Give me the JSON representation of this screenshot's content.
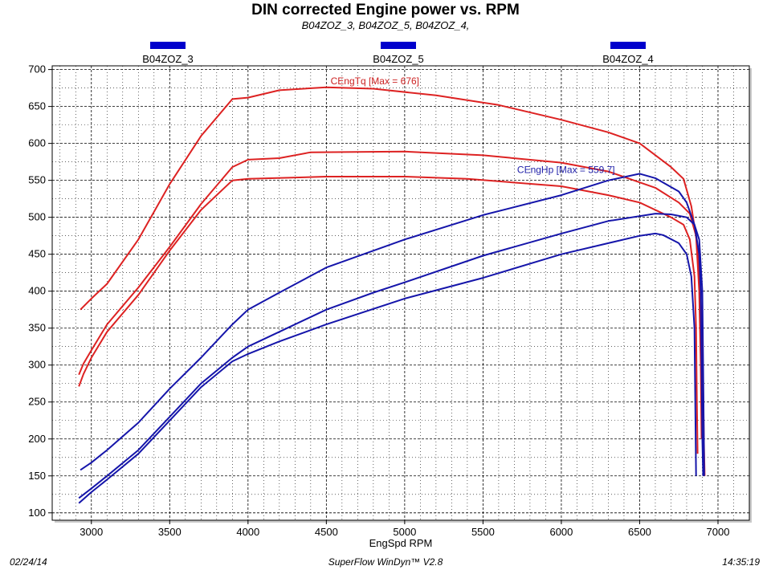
{
  "header": {
    "title": "DIN corrected Engine power vs. RPM",
    "subtitle": "B04ZOZ_3, B04ZOZ_5, B04ZOZ_4,"
  },
  "footer": {
    "date": "02/24/14",
    "software": "SuperFlow WinDyn™ V2.8",
    "time": "14:35:19"
  },
  "chart_data": {
    "type": "line",
    "title": "DIN corrected Engine power vs. RPM",
    "xlabel": "EngSpd  RPM",
    "ylabel": "",
    "xlim": [
      2750,
      7200
    ],
    "ylim": [
      90,
      705
    ],
    "x_ticks": [
      3000,
      3500,
      4000,
      4500,
      5000,
      5500,
      6000,
      6500,
      7000
    ],
    "y_ticks": [
      100,
      150,
      200,
      250,
      300,
      350,
      400,
      450,
      500,
      550,
      600,
      650,
      700
    ],
    "grid": true,
    "legend": [
      "B04ZOZ_3",
      "B04ZOZ_5",
      "B04ZOZ_4"
    ],
    "legend_placement": "top",
    "legend_color": "#0000cc",
    "annotations": [
      {
        "text": "CEngTq [Max = 676]",
        "x": 4810,
        "y": 680,
        "color": "#cc2222"
      },
      {
        "text": "CEngHp [Max = 559.7]",
        "x": 6030,
        "y": 560,
        "color": "#2222aa"
      }
    ],
    "series": [
      {
        "color": "#dd2222",
        "points": [
          [
            2930,
            375
          ],
          [
            3000,
            390
          ],
          [
            3100,
            410
          ],
          [
            3300,
            470
          ],
          [
            3500,
            545
          ],
          [
            3700,
            610
          ],
          [
            3900,
            660
          ],
          [
            4000,
            662
          ],
          [
            4200,
            672
          ],
          [
            4500,
            676
          ],
          [
            4800,
            674
          ],
          [
            5200,
            665
          ],
          [
            5600,
            652
          ],
          [
            6000,
            632
          ],
          [
            6300,
            615
          ],
          [
            6500,
            600
          ],
          [
            6700,
            568
          ],
          [
            6780,
            552
          ],
          [
            6830,
            515
          ],
          [
            6870,
            460
          ],
          [
            6900,
            350
          ],
          [
            6910,
            200
          ],
          [
            6915,
            150
          ]
        ]
      },
      {
        "color": "#dd2222",
        "points": [
          [
            2920,
            287
          ],
          [
            2950,
            302
          ],
          [
            3000,
            320
          ],
          [
            3100,
            355
          ],
          [
            3300,
            405
          ],
          [
            3500,
            460
          ],
          [
            3700,
            518
          ],
          [
            3900,
            568
          ],
          [
            4000,
            578
          ],
          [
            4200,
            580
          ],
          [
            4400,
            588
          ],
          [
            5000,
            589
          ],
          [
            5500,
            584
          ],
          [
            6000,
            574
          ],
          [
            6300,
            562
          ],
          [
            6600,
            540
          ],
          [
            6750,
            520
          ],
          [
            6820,
            505
          ],
          [
            6860,
            475
          ],
          [
            6880,
            400
          ],
          [
            6890,
            300
          ],
          [
            6895,
            200
          ]
        ]
      },
      {
        "color": "#dd2222",
        "points": [
          [
            2920,
            271
          ],
          [
            2950,
            288
          ],
          [
            3000,
            310
          ],
          [
            3100,
            345
          ],
          [
            3300,
            395
          ],
          [
            3500,
            455
          ],
          [
            3700,
            510
          ],
          [
            3900,
            550
          ],
          [
            4000,
            552
          ],
          [
            4500,
            555
          ],
          [
            5000,
            555
          ],
          [
            5400,
            552
          ],
          [
            6000,
            542
          ],
          [
            6300,
            530
          ],
          [
            6500,
            520
          ],
          [
            6700,
            500
          ],
          [
            6780,
            490
          ],
          [
            6820,
            470
          ],
          [
            6850,
            420
          ],
          [
            6860,
            350
          ],
          [
            6865,
            250
          ],
          [
            6870,
            180
          ]
        ]
      },
      {
        "color": "#1515aa",
        "points": [
          [
            2930,
            158
          ],
          [
            3000,
            168
          ],
          [
            3100,
            185
          ],
          [
            3300,
            222
          ],
          [
            3500,
            268
          ],
          [
            3700,
            310
          ],
          [
            3900,
            355
          ],
          [
            4000,
            375
          ],
          [
            4200,
            398
          ],
          [
            4500,
            432
          ],
          [
            5000,
            470
          ],
          [
            5500,
            503
          ],
          [
            6000,
            530
          ],
          [
            6300,
            550
          ],
          [
            6500,
            559
          ],
          [
            6600,
            553
          ],
          [
            6750,
            535
          ],
          [
            6800,
            520
          ],
          [
            6850,
            490
          ],
          [
            6880,
            450
          ],
          [
            6890,
            400
          ],
          [
            6895,
            300
          ],
          [
            6900,
            200
          ],
          [
            6905,
            150
          ]
        ]
      },
      {
        "color": "#1515aa",
        "points": [
          [
            2920,
            120
          ],
          [
            3000,
            133
          ],
          [
            3100,
            150
          ],
          [
            3300,
            185
          ],
          [
            3500,
            230
          ],
          [
            3700,
            275
          ],
          [
            3900,
            310
          ],
          [
            4000,
            325
          ],
          [
            4200,
            345
          ],
          [
            4500,
            375
          ],
          [
            4800,
            398
          ],
          [
            5000,
            412
          ],
          [
            5500,
            448
          ],
          [
            6000,
            478
          ],
          [
            6300,
            495
          ],
          [
            6600,
            505
          ],
          [
            6700,
            504
          ],
          [
            6800,
            500
          ],
          [
            6850,
            490
          ],
          [
            6880,
            470
          ],
          [
            6900,
            400
          ],
          [
            6905,
            300
          ],
          [
            6910,
            200
          ],
          [
            6912,
            150
          ]
        ]
      },
      {
        "color": "#1515aa",
        "points": [
          [
            2920,
            113
          ],
          [
            3000,
            128
          ],
          [
            3100,
            145
          ],
          [
            3300,
            180
          ],
          [
            3500,
            225
          ],
          [
            3700,
            270
          ],
          [
            3900,
            305
          ],
          [
            4000,
            315
          ],
          [
            4200,
            332
          ],
          [
            4500,
            355
          ],
          [
            5000,
            390
          ],
          [
            5500,
            418
          ],
          [
            6000,
            450
          ],
          [
            6300,
            465
          ],
          [
            6500,
            475
          ],
          [
            6600,
            478
          ],
          [
            6650,
            476
          ],
          [
            6750,
            465
          ],
          [
            6800,
            450
          ],
          [
            6830,
            420
          ],
          [
            6850,
            350
          ],
          [
            6855,
            250
          ],
          [
            6860,
            150
          ]
        ]
      }
    ]
  }
}
